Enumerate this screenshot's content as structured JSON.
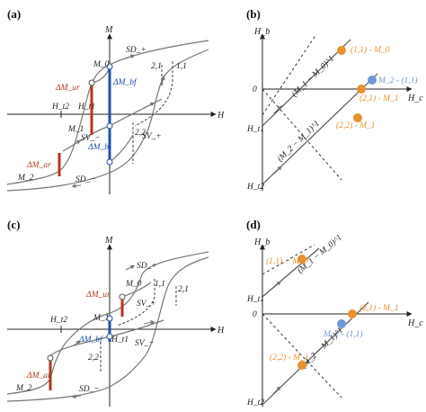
{
  "panels": {
    "a": {
      "label": "(a)",
      "axis_m": "M",
      "axis_h": "H",
      "h_t2": "H_t2",
      "h_t1": "H_t1",
      "m0": "M_0",
      "m1": "M_1",
      "m2": "M_2",
      "sd_plus": "SD_+",
      "sd_minus": "SD_−",
      "sv_plus": "SV_+",
      "sv_minus": "SV_−",
      "b21": "2,1",
      "b11": "1,1",
      "b22": "2,2",
      "dm_ur": "ΔM_ur",
      "dm_ar": "ΔM_ar",
      "dm_bf": "ΔM_bf",
      "dm_bl": "ΔM_bl"
    },
    "b": {
      "label": "(b)",
      "axis_hb": "H_b",
      "axis_hc": "H_c",
      "zero": "0",
      "h_t1": "H_t1",
      "h_t2": "H_t2",
      "line_upper": "(M_1 − M_0)^1",
      "line_lower": "(M_2 − M_1)^1",
      "pt_11": "(1,1) - M_0",
      "pt_m2_11": "M_2 - (1,1)",
      "pt_21": "(2,1) - M_1",
      "pt_22": "(2,2) - M_1"
    },
    "c": {
      "label": "(c)",
      "axis_m": "M",
      "axis_h": "H",
      "h_t2": "H_t2",
      "h_t1": "H_t1",
      "m0": "M_0",
      "m1": "M_1",
      "m2": "M_2",
      "sd_plus": "SD_+",
      "sd_minus": "SD_−",
      "sv_plus": "SV_+",
      "sv_minus": "SV_−",
      "b11": "1,1",
      "b21": "2,1",
      "b22": "2,2",
      "dm_ur": "ΔM_ur",
      "dm_bf": "ΔM_bf",
      "dm_ar": "ΔM_ar"
    },
    "d": {
      "label": "(d)",
      "axis_hb": "H_b",
      "axis_hc": "H_c",
      "zero": "0",
      "h_t1": "H_t1",
      "h_t2": "H_t2",
      "line_upper": "(M_1 − M_0)^1",
      "line_lower": "(M_2 − M_1)^1",
      "pt_11": "(1,1) − M_0",
      "pt_21": "(2,1) - M_1",
      "pt_m2_11": "M_2 - (1,1)",
      "pt_22": "(2,2) - M_1"
    }
  },
  "colors": {
    "reversal_red": "#b5361e",
    "blue": "#1f4fb0",
    "orange": "#e8912f",
    "light_blue": "#6e98d6",
    "curve": "#777777"
  }
}
